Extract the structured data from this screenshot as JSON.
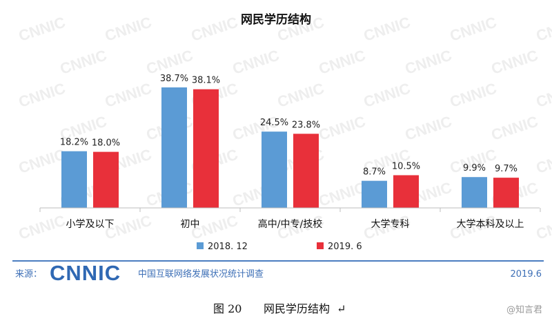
{
  "chart_data": {
    "type": "bar",
    "title": "网民学历结构",
    "categories": [
      "小学及以下",
      "初中",
      "高中/中专/技校",
      "大学专科",
      "大学本科及以上"
    ],
    "series": [
      {
        "name": "2018. 12",
        "color": "#5b9bd5",
        "values": [
          18.2,
          38.7,
          24.5,
          8.7,
          9.9
        ],
        "labels": [
          "18.2%",
          "38.7%",
          "24.5%",
          "8.7%",
          "9.9%"
        ]
      },
      {
        "name": "2019. 6",
        "color": "#e8303a",
        "values": [
          18.0,
          38.1,
          23.8,
          10.5,
          9.7
        ],
        "labels": [
          "18.0%",
          "38.1%",
          "23.8%",
          "10.5%",
          "9.7%"
        ]
      }
    ],
    "ylim": [
      0,
      42
    ],
    "legend": "bottom",
    "grid": false
  },
  "watermark": "CNNIC",
  "source": {
    "label": "来源：",
    "logo": "CNNIC",
    "org": "中国互联网络发展状况统计调查",
    "date": "2019.6",
    "color": "#3d6fb6"
  },
  "caption": {
    "figure_no": "图 20",
    "text": "网民学历结构",
    "mark": "↵"
  },
  "weibo_mark": "@知言君"
}
